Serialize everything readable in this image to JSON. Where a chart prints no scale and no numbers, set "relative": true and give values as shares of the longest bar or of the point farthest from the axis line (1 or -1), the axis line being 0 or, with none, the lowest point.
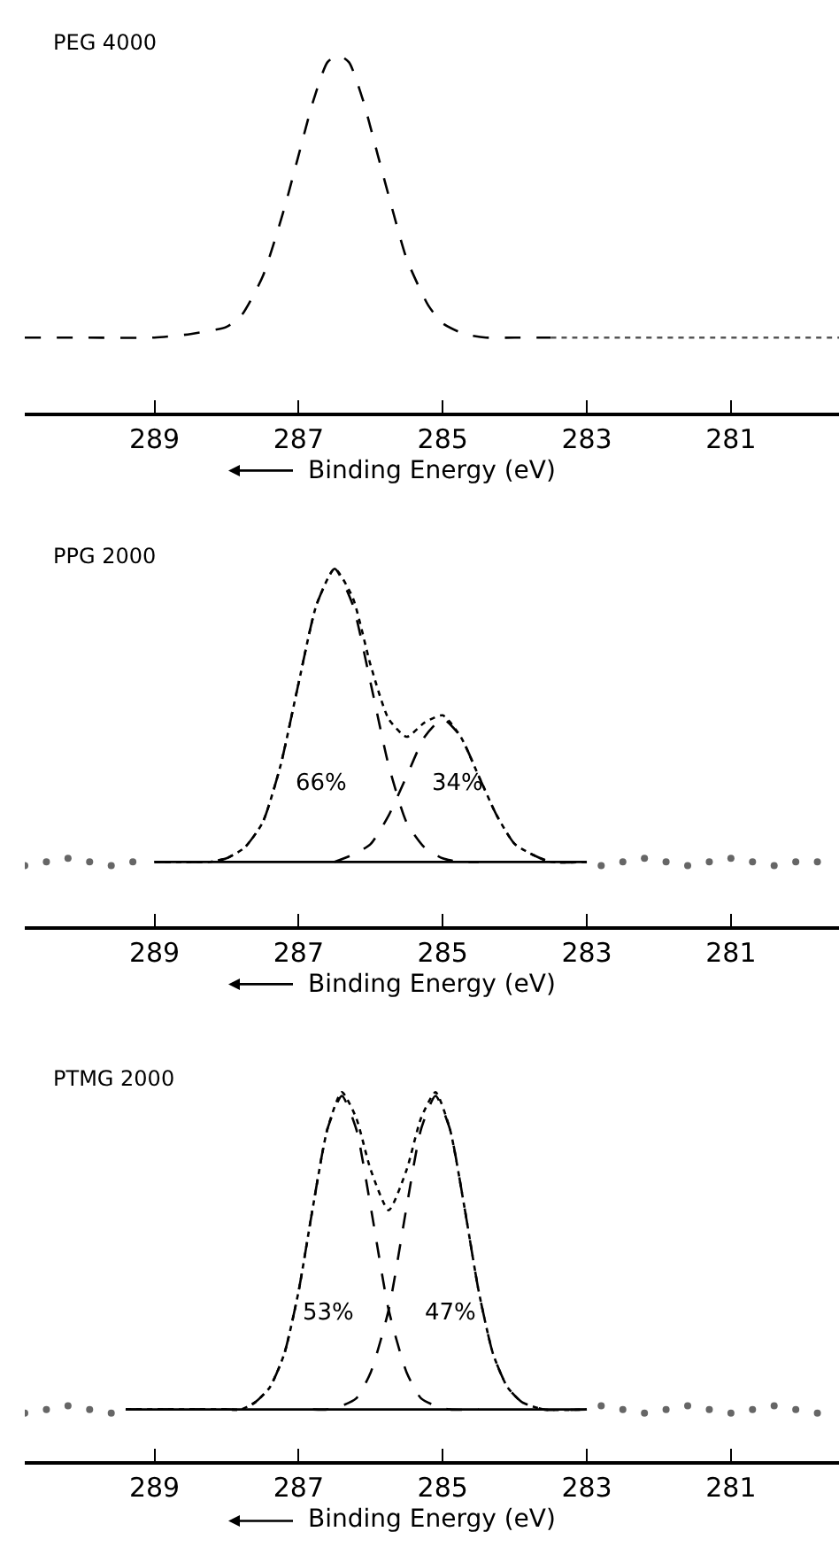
{
  "chart_data": [
    {
      "type": "line",
      "title": "PEG 4000",
      "xlabel": "Binding Energy (eV)",
      "relative": true,
      "xlim": [
        290.8,
        279.5
      ],
      "xticks": [
        289,
        287,
        285,
        283,
        281
      ],
      "series": [
        {
          "color": "#000000",
          "line_style": "dashed",
          "x": [
            290.8,
            290,
            289,
            288.5,
            288,
            287.8,
            287.5,
            287.2,
            287.0,
            286.8,
            286.6,
            286.45,
            286.3,
            286.1,
            285.9,
            285.7,
            285.5,
            285.2,
            285.0,
            284.7,
            284.4,
            284,
            283.5
          ],
          "values": [
            0.21,
            0.21,
            0.21,
            0.22,
            0.24,
            0.27,
            0.38,
            0.57,
            0.72,
            0.87,
            0.98,
            1.0,
            0.98,
            0.87,
            0.72,
            0.57,
            0.43,
            0.3,
            0.25,
            0.22,
            0.21,
            0.21,
            0.21
          ]
        },
        {
          "color": "#555555",
          "line_style": "dotted",
          "x": [
            283.5,
            282.5,
            281.5,
            280.5,
            279.5
          ],
          "values": [
            0.21,
            0.21,
            0.21,
            0.21,
            0.21
          ]
        }
      ]
    },
    {
      "type": "line",
      "title": "PPG 2000",
      "xlabel": "Binding Energy (eV)",
      "relative": true,
      "xlim": [
        290.8,
        279.5
      ],
      "xticks": [
        289,
        287,
        285,
        283,
        281
      ],
      "annotations": [
        "66%",
        "34%"
      ],
      "series": [
        {
          "type": "scatter",
          "color": "#666666",
          "x": [
            290.8,
            290.5,
            290.2,
            289.9,
            289.6,
            289.3,
            282.8,
            282.5,
            282.2,
            281.9,
            281.6,
            281.3,
            281.0,
            280.7,
            280.4,
            280.1,
            279.8
          ],
          "values": [
            0.17,
            0.18,
            0.19,
            0.18,
            0.17,
            0.18,
            0.17,
            0.18,
            0.19,
            0.18,
            0.17,
            0.18,
            0.19,
            0.18,
            0.17,
            0.18,
            0.18
          ]
        },
        {
          "color": "#000000",
          "line_style": "solid",
          "x": [
            289,
            283
          ],
          "values": [
            0.18,
            0.18
          ]
        },
        {
          "color": "#000000",
          "line_style": "dashed",
          "x": [
            289,
            288.5,
            288.25,
            288,
            287.75,
            287.5,
            287.25,
            287,
            286.75,
            286.5,
            286.25,
            286,
            285.75,
            285.5,
            285.25,
            285,
            284.75,
            284.5
          ],
          "values": [
            0.18,
            0.18,
            0.18,
            0.19,
            0.22,
            0.29,
            0.45,
            0.68,
            0.9,
            1.0,
            0.9,
            0.68,
            0.45,
            0.29,
            0.22,
            0.19,
            0.18,
            0.18
          ]
        },
        {
          "color": "#000000",
          "line_style": "dashed",
          "x": [
            286.5,
            286.25,
            286,
            285.75,
            285.5,
            285.25,
            285,
            284.75,
            284.5,
            284.25,
            284,
            283.75,
            283.5,
            283
          ],
          "values": [
            0.18,
            0.2,
            0.23,
            0.31,
            0.42,
            0.53,
            0.58,
            0.53,
            0.42,
            0.31,
            0.23,
            0.2,
            0.18,
            0.18
          ]
        },
        {
          "color": "#000000",
          "line_style": "dotted",
          "x": [
            289,
            288.5,
            288.25,
            288,
            287.75,
            287.5,
            287.25,
            287,
            286.75,
            286.5,
            286.25,
            286,
            285.75,
            285.5,
            285.25,
            285,
            284.75,
            284.5,
            284.25,
            284,
            283.75,
            283.5,
            283
          ],
          "values": [
            0.18,
            0.18,
            0.18,
            0.19,
            0.22,
            0.29,
            0.45,
            0.68,
            0.9,
            1.0,
            0.92,
            0.73,
            0.58,
            0.53,
            0.57,
            0.59,
            0.53,
            0.42,
            0.31,
            0.23,
            0.2,
            0.18,
            0.18
          ]
        }
      ]
    },
    {
      "type": "line",
      "title": "PTMG 2000",
      "xlabel": "Binding Energy (eV)",
      "relative": true,
      "xlim": [
        290.8,
        279.5
      ],
      "xticks": [
        289,
        287,
        285,
        283,
        281
      ],
      "annotations": [
        "53%",
        "47%"
      ],
      "series": [
        {
          "type": "scatter",
          "color": "#666666",
          "x": [
            290.8,
            290.5,
            290.2,
            289.9,
            289.6,
            282.8,
            282.5,
            282.2,
            281.9,
            281.6,
            281.3,
            281.0,
            280.7,
            280.4,
            280.1,
            279.8
          ],
          "values": [
            0.13,
            0.14,
            0.15,
            0.14,
            0.13,
            0.15,
            0.14,
            0.13,
            0.14,
            0.15,
            0.14,
            0.13,
            0.14,
            0.15,
            0.14,
            0.13
          ]
        },
        {
          "color": "#000000",
          "line_style": "solid",
          "x": [
            289.4,
            283
          ],
          "values": [
            0.14,
            0.14
          ]
        },
        {
          "color": "#000000",
          "line_style": "dashed",
          "x": [
            289.4,
            288.5,
            288,
            287.8,
            287.6,
            287.4,
            287.2,
            287.0,
            286.8,
            286.6,
            286.4,
            286.2,
            286.0,
            285.75,
            285.5,
            285.3,
            285.1,
            284.9,
            284.5
          ],
          "values": [
            0.14,
            0.14,
            0.14,
            0.14,
            0.16,
            0.2,
            0.29,
            0.46,
            0.69,
            0.9,
            0.99,
            0.9,
            0.69,
            0.41,
            0.24,
            0.17,
            0.15,
            0.14,
            0.14
          ]
        },
        {
          "color": "#000000",
          "line_style": "dashed",
          "x": [
            286.8,
            286.6,
            286.4,
            286.2,
            286.0,
            285.75,
            285.5,
            285.3,
            285.1,
            284.9,
            284.7,
            284.5,
            284.3,
            284.1,
            283.9,
            283.6,
            283.0
          ],
          "values": [
            0.14,
            0.14,
            0.15,
            0.17,
            0.24,
            0.41,
            0.69,
            0.9,
            0.99,
            0.9,
            0.69,
            0.46,
            0.29,
            0.2,
            0.16,
            0.14,
            0.14
          ]
        },
        {
          "color": "#000000",
          "line_style": "dotted",
          "x": [
            289.4,
            288.5,
            288,
            287.8,
            287.6,
            287.4,
            287.2,
            287.0,
            286.8,
            286.6,
            286.4,
            286.2,
            286.0,
            285.75,
            285.5,
            285.3,
            285.1,
            284.9,
            284.7,
            284.5,
            284.3,
            284.1,
            283.9,
            283.6,
            283.0
          ],
          "values": [
            0.14,
            0.14,
            0.14,
            0.14,
            0.16,
            0.2,
            0.29,
            0.46,
            0.69,
            0.9,
            1.0,
            0.93,
            0.79,
            0.68,
            0.79,
            0.93,
            1.0,
            0.9,
            0.69,
            0.46,
            0.29,
            0.2,
            0.16,
            0.14,
            0.14
          ]
        }
      ]
    }
  ]
}
